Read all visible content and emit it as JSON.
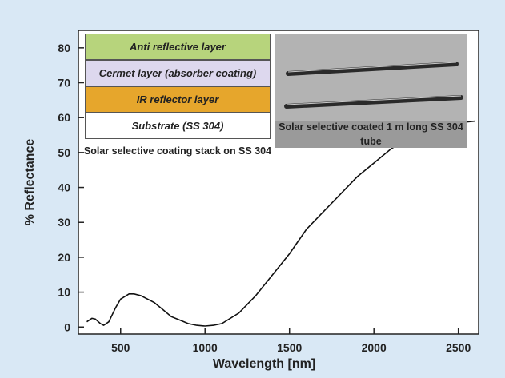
{
  "chart_data": {
    "type": "line",
    "x_label": "Wavelength [nm]",
    "y_label": "% Reflectance",
    "x": [
      300,
      330,
      350,
      380,
      400,
      430,
      470,
      500,
      550,
      580,
      620,
      660,
      700,
      750,
      800,
      850,
      900,
      950,
      1000,
      1050,
      1100,
      1200,
      1300,
      1400,
      1500,
      1600,
      1700,
      1800,
      1900,
      2000,
      2100,
      2200,
      2300,
      2400,
      2500,
      2600
    ],
    "values": [
      1.5,
      2.5,
      2.3,
      1.0,
      0.5,
      1.5,
      5.5,
      8,
      9.5,
      9.5,
      9,
      8,
      7,
      5,
      3,
      2,
      1,
      0.5,
      0.3,
      0.5,
      1,
      4,
      9,
      15,
      21,
      28,
      33,
      38,
      43,
      47,
      51,
      54,
      56,
      57.5,
      58.5,
      59
    ],
    "color": "#111111",
    "xlim": [
      250,
      2620
    ],
    "ylim": [
      -2,
      85
    ],
    "xticks": [
      500,
      1000,
      1500,
      2000,
      2500
    ],
    "yticks": [
      0,
      10,
      20,
      30,
      40,
      50,
      60,
      70,
      80
    ],
    "layers": [
      {
        "label": "Anti reflective layer",
        "color": "#b7d47c"
      },
      {
        "label": "Cermet layer (absorber coating)",
        "color": "#ddd8ee"
      },
      {
        "label": "IR reflector layer",
        "color": "#e6a62c"
      },
      {
        "label": "Substrate (SS 304)",
        "color": "#ffffff"
      }
    ],
    "stack_caption": "Solar selective coating stack on SS 304",
    "photo_caption": "Solar selective coated 1 m long SS 304 tube"
  }
}
